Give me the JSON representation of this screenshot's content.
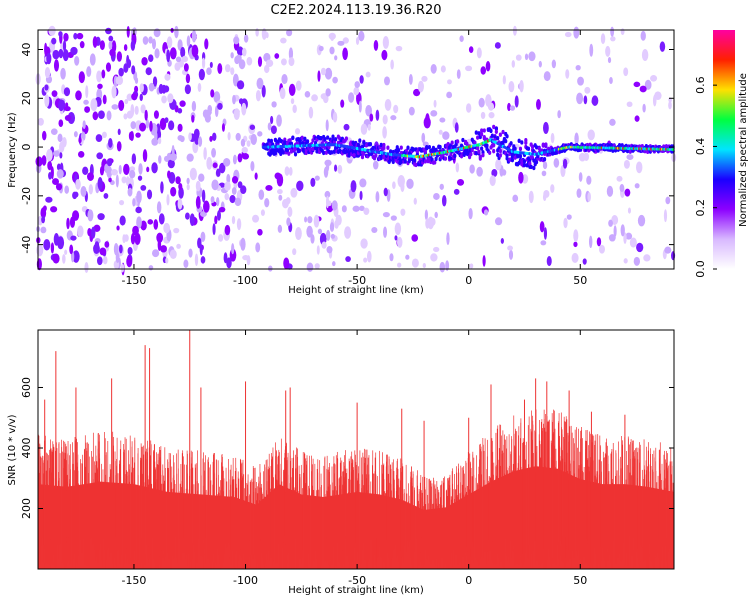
{
  "title": "C2E2.2024.113.19.36.R20",
  "chart_data": [
    {
      "type": "heatmap",
      "xlabel": "Height of straight line (km)",
      "ylabel": "Frequency (Hz)",
      "xlim": [
        -193,
        92
      ],
      "ylim": [
        -50,
        48
      ],
      "xticks": [
        -150,
        -100,
        -50,
        0,
        50
      ],
      "yticks": [
        -40,
        -20,
        0,
        20,
        40
      ],
      "colorbar": {
        "label": "Normalized spectral amplitude",
        "range": [
          0.0,
          0.78
        ],
        "ticks": [
          0.0,
          0.2,
          0.4,
          0.6
        ],
        "colors": [
          "#ffffff",
          "#d8b8ff",
          "#8c00ff",
          "#1a00ff",
          "#00e5ff",
          "#00ff40",
          "#ffe000",
          "#ff2000",
          "#ff00a0"
        ]
      },
      "features": {
        "ridge": [
          {
            "x": -90,
            "y": 0
          },
          {
            "x": -60,
            "y": 1
          },
          {
            "x": -35,
            "y": -3
          },
          {
            "x": -22,
            "y": -4
          },
          {
            "x": -10,
            "y": -2
          },
          {
            "x": 0,
            "y": 0
          },
          {
            "x": 5,
            "y": 1
          },
          {
            "x": 10,
            "y": 3
          },
          {
            "x": 20,
            "y": -2
          },
          {
            "x": 30,
            "y": -3
          },
          {
            "x": 45,
            "y": 0
          },
          {
            "x": 92,
            "y": -1
          }
        ],
        "peak_amplitude": 0.78
      }
    },
    {
      "type": "area",
      "xlabel": "Height of straight line (km)",
      "ylabel": "SNR (10 * v/v)",
      "xlim": [
        -193,
        92
      ],
      "ylim": [
        0,
        790
      ],
      "xticks": [
        -150,
        -100,
        -50,
        0,
        50
      ],
      "yticks": [
        200,
        400,
        600
      ],
      "color": "#ee3333",
      "envelope": [
        {
          "x": -193,
          "y": 330
        },
        {
          "x": -180,
          "y": 320
        },
        {
          "x": -165,
          "y": 340
        },
        {
          "x": -150,
          "y": 330
        },
        {
          "x": -135,
          "y": 300
        },
        {
          "x": -120,
          "y": 290
        },
        {
          "x": -105,
          "y": 280
        },
        {
          "x": -95,
          "y": 250
        },
        {
          "x": -85,
          "y": 330
        },
        {
          "x": -75,
          "y": 290
        },
        {
          "x": -65,
          "y": 280
        },
        {
          "x": -50,
          "y": 300
        },
        {
          "x": -40,
          "y": 290
        },
        {
          "x": -30,
          "y": 270
        },
        {
          "x": -20,
          "y": 230
        },
        {
          "x": -10,
          "y": 240
        },
        {
          "x": 0,
          "y": 290
        },
        {
          "x": 10,
          "y": 340
        },
        {
          "x": 20,
          "y": 380
        },
        {
          "x": 30,
          "y": 400
        },
        {
          "x": 40,
          "y": 390
        },
        {
          "x": 50,
          "y": 350
        },
        {
          "x": 60,
          "y": 330
        },
        {
          "x": 70,
          "y": 330
        },
        {
          "x": 80,
          "y": 320
        },
        {
          "x": 92,
          "y": 300
        }
      ],
      "spikes": [
        {
          "x": -190,
          "y": 560
        },
        {
          "x": -185,
          "y": 720
        },
        {
          "x": -176,
          "y": 600
        },
        {
          "x": -160,
          "y": 630
        },
        {
          "x": -145,
          "y": 740
        },
        {
          "x": -143,
          "y": 730
        },
        {
          "x": -125,
          "y": 790
        },
        {
          "x": -120,
          "y": 600
        },
        {
          "x": -100,
          "y": 620
        },
        {
          "x": -82,
          "y": 590
        },
        {
          "x": -80,
          "y": 600
        },
        {
          "x": -50,
          "y": 550
        },
        {
          "x": -30,
          "y": 530
        },
        {
          "x": -20,
          "y": 490
        },
        {
          "x": 0,
          "y": 500
        },
        {
          "x": 10,
          "y": 610
        },
        {
          "x": 25,
          "y": 560
        },
        {
          "x": 30,
          "y": 630
        },
        {
          "x": 35,
          "y": 620
        },
        {
          "x": 45,
          "y": 590
        },
        {
          "x": 55,
          "y": 520
        },
        {
          "x": 70,
          "y": 510
        }
      ]
    }
  ]
}
